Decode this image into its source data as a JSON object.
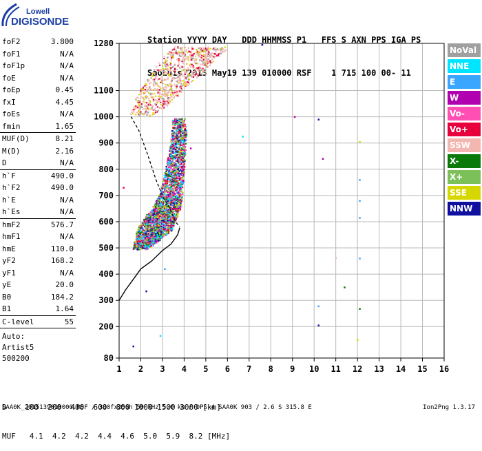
{
  "logo": {
    "line1": "Lowell",
    "line2": "DIGISONDE"
  },
  "header": {
    "labels": "Station YYYY DAY   DDD HHMMSS P1   FFS S AXN PPS IGA PS",
    "values": "SaoLuis 2015 May19 139 010000 RSF    1 715 100 00- 11"
  },
  "params": [
    {
      "k": "foF2",
      "v": "3.800"
    },
    {
      "k": "foF1",
      "v": "N/A"
    },
    {
      "k": "foF1p",
      "v": "N/A"
    },
    {
      "k": "foE",
      "v": "N/A"
    },
    {
      "k": "foEp",
      "v": "0.45"
    },
    {
      "k": "fxI",
      "v": "4.45"
    },
    {
      "k": "foEs",
      "v": "N/A"
    },
    {
      "k": "fmin",
      "v": "1.65"
    },
    {
      "k": "MUF(D)",
      "v": "8.21"
    },
    {
      "k": "M(D)",
      "v": "2.16"
    },
    {
      "k": "D",
      "v": "N/A"
    },
    {
      "k": "h`F",
      "v": "490.0"
    },
    {
      "k": "h`F2",
      "v": "490.0"
    },
    {
      "k": "h`E",
      "v": "N/A"
    },
    {
      "k": "h`Es",
      "v": "N/A"
    },
    {
      "k": "hmF2",
      "v": "576.7"
    },
    {
      "k": "hmF1",
      "v": "N/A"
    },
    {
      "k": "hmE",
      "v": "110.0"
    },
    {
      "k": "yF2",
      "v": "168.2"
    },
    {
      "k": "yF1",
      "v": "N/A"
    },
    {
      "k": "yE",
      "v": "20.0"
    },
    {
      "k": "B0",
      "v": "184.2"
    },
    {
      "k": "B1",
      "v": "1.64"
    },
    {
      "k": "C-level",
      "v": "55"
    }
  ],
  "auto": {
    "line1": "Auto:",
    "line2": "Artist5",
    "line3": "500200"
  },
  "legend": [
    {
      "label": "NoVal",
      "bg": "#a0a0a0",
      "fg": "#ffffff"
    },
    {
      "label": "NNE",
      "bg": "#00e5ff",
      "fg": "#ffffff"
    },
    {
      "label": "E",
      "bg": "#3aa6ff",
      "fg": "#ffffff"
    },
    {
      "label": "W",
      "bg": "#b000b0",
      "fg": "#ffffff"
    },
    {
      "label": "Vo-",
      "bg": "#ff4fb4",
      "fg": "#ffffff"
    },
    {
      "label": "Vo+",
      "bg": "#e8003c",
      "fg": "#ffffff"
    },
    {
      "label": "SSW",
      "bg": "#f4b6b0",
      "fg": "#ffffff"
    },
    {
      "label": "X-",
      "bg": "#0a7a0a",
      "fg": "#ffffff"
    },
    {
      "label": "X+",
      "bg": "#7cc05a",
      "fg": "#ffffff"
    },
    {
      "label": "SSE",
      "bg": "#d7d700",
      "fg": "#ffffff"
    },
    {
      "label": "NNW",
      "bg": "#1010a0",
      "fg": "#ffffff"
    }
  ],
  "dtable": {
    "row1": "D    100  200  400  600  800 1000 1500 3000 [km]",
    "row2": "MUF   4.1  4.2  4.2  4.4  4.6  5.0  5.9  8.2 [MHz]"
  },
  "footer": {
    "left": "SAA0K_2015139010000.RSF / 300fx256h 50 kHz 5.0 km / DPS-4 SAA0K 903 / 2.6 S 315.8 E",
    "right": "Ion2Png 1.3.17"
  },
  "chart_data": {
    "type": "scatter",
    "xlabel": "",
    "ylabel": "",
    "xlim": [
      1,
      16
    ],
    "ylim": [
      80,
      1280
    ],
    "xticks": [
      1,
      2,
      3,
      4,
      5,
      6,
      7,
      8,
      9,
      10,
      11,
      12,
      13,
      14,
      15,
      16
    ],
    "yticks": [
      80,
      200,
      300,
      400,
      500,
      600,
      700,
      800,
      900,
      1000,
      1100,
      1280
    ],
    "grid": true,
    "profile_solid": [
      {
        "x": 1.0,
        "y": 300
      },
      {
        "x": 1.3,
        "y": 340
      },
      {
        "x": 1.65,
        "y": 380
      },
      {
        "x": 2.0,
        "y": 420
      },
      {
        "x": 2.5,
        "y": 450
      },
      {
        "x": 3.0,
        "y": 490
      },
      {
        "x": 3.4,
        "y": 515
      },
      {
        "x": 3.7,
        "y": 550
      },
      {
        "x": 3.8,
        "y": 577
      }
    ],
    "profile_dashed": [
      {
        "x": 1.55,
        "y": 1000
      },
      {
        "x": 1.9,
        "y": 950
      },
      {
        "x": 2.3,
        "y": 860
      },
      {
        "x": 2.7,
        "y": 760
      },
      {
        "x": 3.05,
        "y": 690
      },
      {
        "x": 3.35,
        "y": 650
      },
      {
        "x": 3.6,
        "y": 600
      },
      {
        "x": 3.8,
        "y": 580
      }
    ],
    "echo_band": [
      {
        "x0": 1.6,
        "x1": 2.3,
        "y": 500
      },
      {
        "x0": 1.7,
        "x1": 2.8,
        "y": 530
      },
      {
        "x0": 1.8,
        "x1": 3.4,
        "y": 570
      },
      {
        "x0": 2.1,
        "x1": 3.6,
        "y": 610
      },
      {
        "x0": 2.5,
        "x1": 3.8,
        "y": 650
      },
      {
        "x0": 2.8,
        "x1": 3.9,
        "y": 700
      },
      {
        "x0": 3.0,
        "x1": 3.95,
        "y": 760
      },
      {
        "x0": 3.15,
        "x1": 4.0,
        "y": 820
      },
      {
        "x0": 3.3,
        "x1": 4.05,
        "y": 880
      },
      {
        "x0": 3.4,
        "x1": 4.1,
        "y": 940
      },
      {
        "x0": 3.45,
        "x1": 4.0,
        "y": 1000
      }
    ],
    "upper_echo_band": [
      {
        "x0": 1.5,
        "x1": 2.6,
        "y": 1010
      },
      {
        "x0": 1.7,
        "x1": 3.4,
        "y": 1060
      },
      {
        "x0": 2.0,
        "x1": 4.0,
        "y": 1110
      },
      {
        "x0": 2.5,
        "x1": 4.8,
        "y": 1170
      },
      {
        "x0": 3.0,
        "x1": 5.6,
        "y": 1230
      },
      {
        "x0": 3.5,
        "x1": 6.0,
        "y": 1270
      }
    ],
    "isolated_points": [
      {
        "x": 7.6,
        "y": 1275,
        "c": "#1010a0"
      },
      {
        "x": 9.1,
        "y": 1000,
        "c": "#b000b0"
      },
      {
        "x": 10.2,
        "y": 990,
        "c": "#1010a0"
      },
      {
        "x": 10.4,
        "y": 840,
        "c": "#b000b0"
      },
      {
        "x": 6.7,
        "y": 925,
        "c": "#00e5ff"
      },
      {
        "x": 12.1,
        "y": 905,
        "c": "#d7d700"
      },
      {
        "x": 12.1,
        "y": 760,
        "c": "#3aa6ff"
      },
      {
        "x": 12.1,
        "y": 680,
        "c": "#3aa6ff"
      },
      {
        "x": 12.1,
        "y": 615,
        "c": "#3aa6ff"
      },
      {
        "x": 12.1,
        "y": 460,
        "c": "#3aa6ff"
      },
      {
        "x": 11.0,
        "y": 462,
        "c": "#f4b6b0"
      },
      {
        "x": 11.4,
        "y": 350,
        "c": "#0a7a0a"
      },
      {
        "x": 12.1,
        "y": 268,
        "c": "#0a7a0a"
      },
      {
        "x": 10.2,
        "y": 278,
        "c": "#3aa6ff"
      },
      {
        "x": 10.2,
        "y": 205,
        "c": "#1010a0"
      },
      {
        "x": 2.25,
        "y": 335,
        "c": "#1010a0"
      },
      {
        "x": 3.1,
        "y": 420,
        "c": "#3aa6ff"
      },
      {
        "x": 1.2,
        "y": 730,
        "c": "#e8003c"
      },
      {
        "x": 4.3,
        "y": 880,
        "c": "#b000b0"
      },
      {
        "x": 1.65,
        "y": 125,
        "c": "#1010a0"
      },
      {
        "x": 2.9,
        "y": 165,
        "c": "#00e5ff"
      },
      {
        "x": 12.0,
        "y": 150,
        "c": "#d7d700"
      }
    ]
  }
}
